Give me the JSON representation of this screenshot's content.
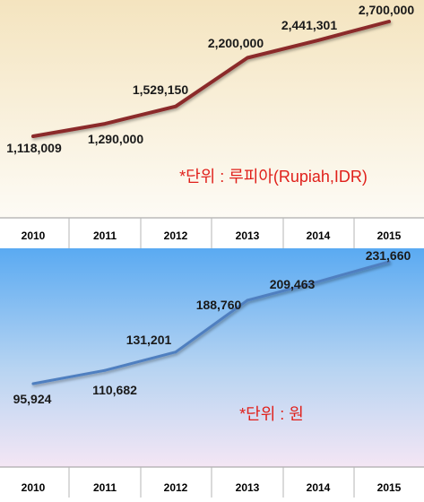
{
  "chart_data": [
    {
      "type": "line",
      "categories": [
        "2010",
        "2011",
        "2012",
        "2013",
        "2014",
        "2015"
      ],
      "values": [
        1118009,
        1290000,
        1529150,
        2200000,
        2441301,
        2700000
      ],
      "data_labels": [
        "1,118,009",
        "1,290,000",
        "1,529,150",
        "2,200,000",
        "2,441,301",
        "2,700,000"
      ],
      "unit_note": "*단위 : 루피아(Rupiah,IDR)",
      "line_color": "#8b2a2a",
      "unit_note_color": "#e0201b",
      "grid": false,
      "legend": "none"
    },
    {
      "type": "line",
      "categories": [
        "2010",
        "2011",
        "2012",
        "2013",
        "2014",
        "2015"
      ],
      "values": [
        95924,
        110682,
        131201,
        188760,
        209463,
        231660
      ],
      "data_labels": [
        "95,924",
        "110,682",
        "131,201",
        "188,760",
        "209,463",
        "231,660"
      ],
      "unit_note": "*단위 : 원",
      "line_color": "#4f7fc0",
      "unit_note_color": "#e0201b",
      "grid": false,
      "legend": "none"
    }
  ]
}
